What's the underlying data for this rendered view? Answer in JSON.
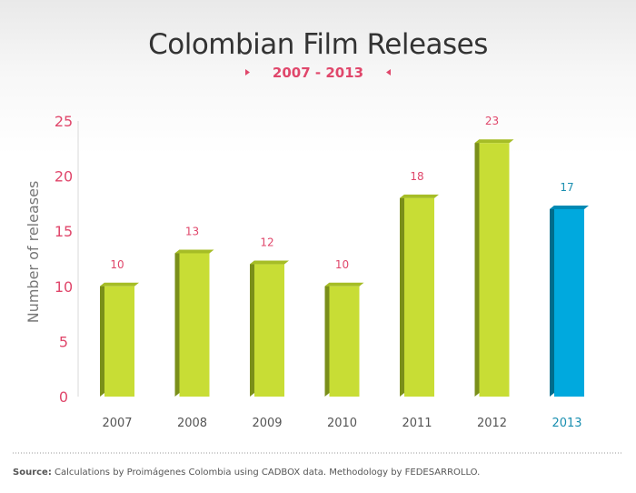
{
  "chart_data": {
    "type": "bar",
    "title": "Colombian Film Releases",
    "subtitle": "2007 - 2013",
    "ylabel": "Number of releases",
    "xlabel": "",
    "categories": [
      "2007",
      "2008",
      "2009",
      "2010",
      "2011",
      "2012",
      "2013"
    ],
    "values": [
      10,
      13,
      12,
      10,
      18,
      23,
      17
    ],
    "ylim": [
      0,
      25
    ],
    "yticks": [
      0,
      5,
      10,
      15,
      20,
      25
    ],
    "grid": false,
    "highlight_category": "2013"
  },
  "colors": {
    "bar": "#c8dd35",
    "bar_side": "#7a8f1a",
    "bar_top": "#a6bd26",
    "highlight": "#00a9de",
    "highlight_side": "#006c8c",
    "highlight_top": "#0089b3",
    "accent": "#e0476b",
    "highlight_label": "#1a8fb0",
    "axis_text": "#555555",
    "subtitle_arrow": "#e0476b"
  },
  "source": {
    "label": "Source:",
    "text": " Calculations by Proimágenes Colombia using CADBOX data. Methodology by FEDESARROLLO."
  }
}
